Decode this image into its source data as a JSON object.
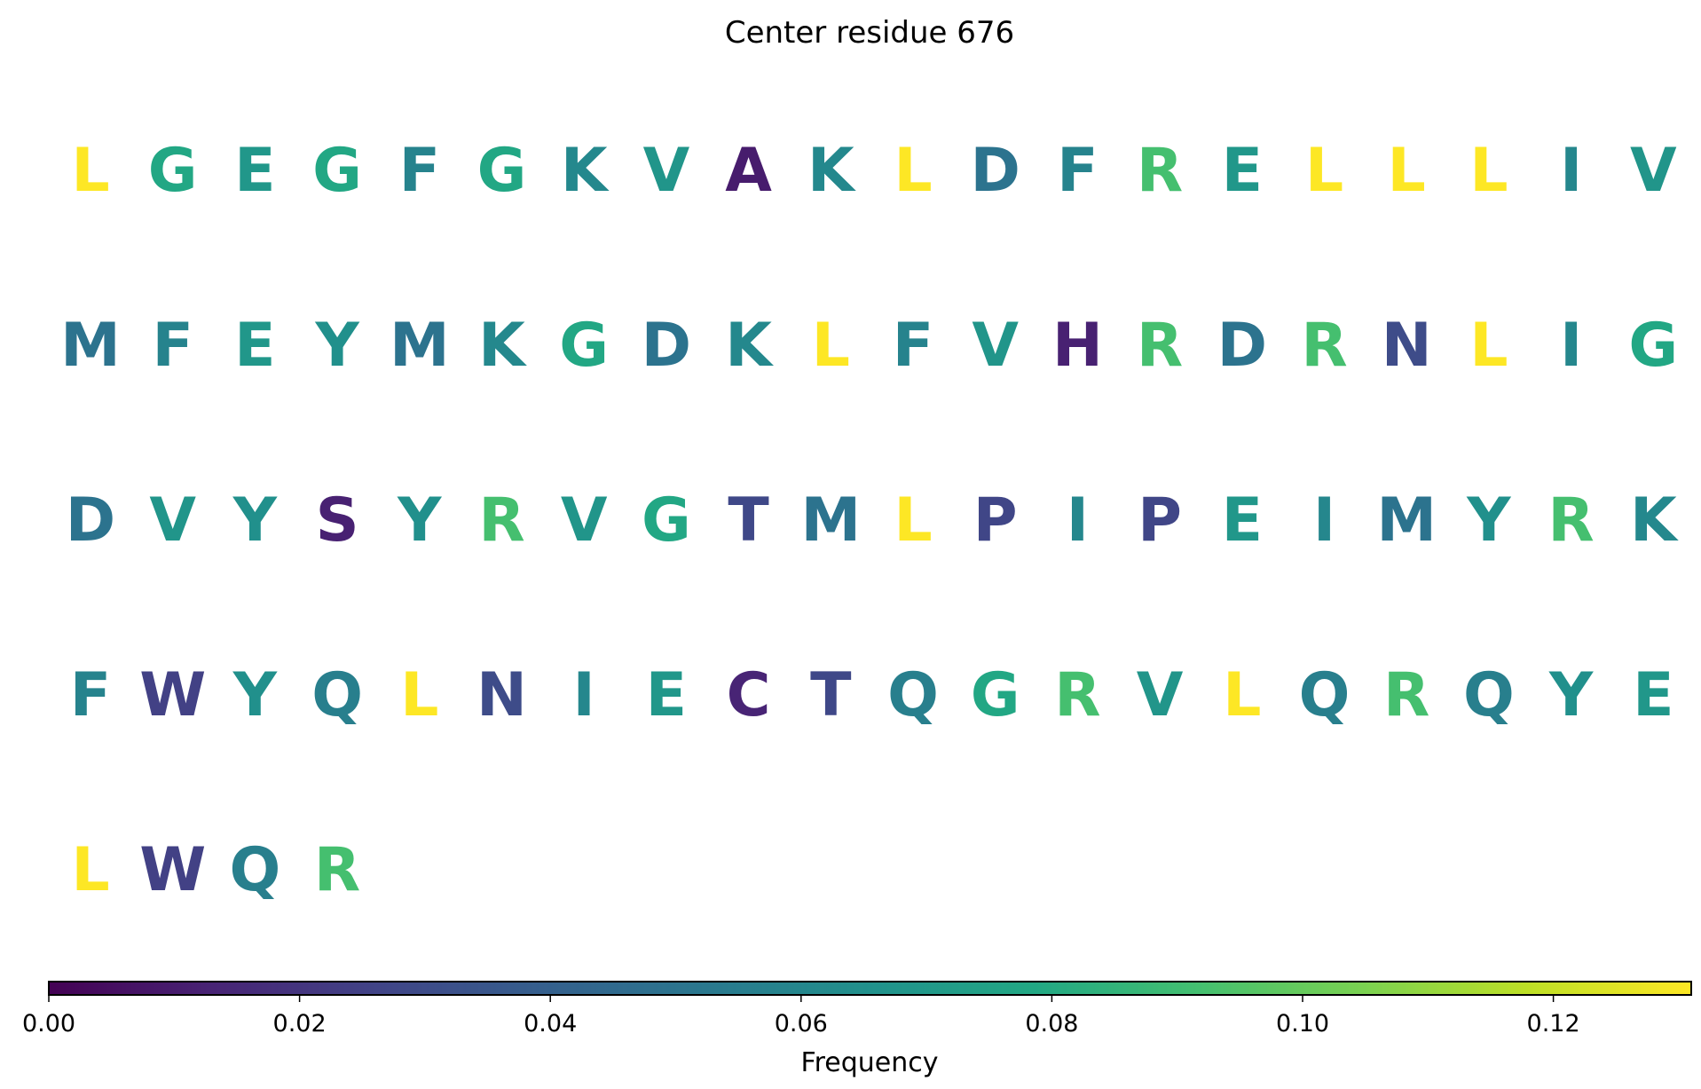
{
  "chart_data": {
    "type": "heatmap",
    "title": "Center residue 676",
    "colorbar": {
      "label": "Frequency",
      "range": [
        0,
        0.131
      ],
      "ticks": [
        0.0,
        0.02,
        0.04,
        0.06,
        0.08,
        0.1,
        0.12
      ],
      "tick_labels": [
        "0.00",
        "0.02",
        "0.04",
        "0.06",
        "0.08",
        "0.10",
        "0.12"
      ],
      "colormap": "viridis",
      "placement": "bottom"
    },
    "columns_per_row": 20,
    "residues": [
      {
        "letter": "L",
        "frequency": 0.131
      },
      {
        "letter": "G",
        "frequency": 0.078
      },
      {
        "letter": "E",
        "frequency": 0.069
      },
      {
        "letter": "G",
        "frequency": 0.078
      },
      {
        "letter": "F",
        "frequency": 0.058
      },
      {
        "letter": "G",
        "frequency": 0.078
      },
      {
        "letter": "K",
        "frequency": 0.061
      },
      {
        "letter": "V",
        "frequency": 0.068
      },
      {
        "letter": "A",
        "frequency": 0.01
      },
      {
        "letter": "K",
        "frequency": 0.061
      },
      {
        "letter": "L",
        "frequency": 0.131
      },
      {
        "letter": "D",
        "frequency": 0.05
      },
      {
        "letter": "F",
        "frequency": 0.058
      },
      {
        "letter": "R",
        "frequency": 0.092
      },
      {
        "letter": "E",
        "frequency": 0.069
      },
      {
        "letter": "L",
        "frequency": 0.131
      },
      {
        "letter": "L",
        "frequency": 0.131
      },
      {
        "letter": "L",
        "frequency": 0.131
      },
      {
        "letter": "I",
        "frequency": 0.06
      },
      {
        "letter": "V",
        "frequency": 0.068
      },
      {
        "letter": "M",
        "frequency": 0.05
      },
      {
        "letter": "F",
        "frequency": 0.058
      },
      {
        "letter": "E",
        "frequency": 0.069
      },
      {
        "letter": "Y",
        "frequency": 0.065
      },
      {
        "letter": "M",
        "frequency": 0.05
      },
      {
        "letter": "K",
        "frequency": 0.061
      },
      {
        "letter": "G",
        "frequency": 0.078
      },
      {
        "letter": "D",
        "frequency": 0.05
      },
      {
        "letter": "K",
        "frequency": 0.061
      },
      {
        "letter": "L",
        "frequency": 0.131
      },
      {
        "letter": "F",
        "frequency": 0.058
      },
      {
        "letter": "V",
        "frequency": 0.068
      },
      {
        "letter": "H",
        "frequency": 0.012
      },
      {
        "letter": "R",
        "frequency": 0.092
      },
      {
        "letter": "D",
        "frequency": 0.05
      },
      {
        "letter": "R",
        "frequency": 0.092
      },
      {
        "letter": "N",
        "frequency": 0.03
      },
      {
        "letter": "L",
        "frequency": 0.131
      },
      {
        "letter": "I",
        "frequency": 0.06
      },
      {
        "letter": "G",
        "frequency": 0.078
      },
      {
        "letter": "D",
        "frequency": 0.05
      },
      {
        "letter": "V",
        "frequency": 0.068
      },
      {
        "letter": "Y",
        "frequency": 0.065
      },
      {
        "letter": "S",
        "frequency": 0.012
      },
      {
        "letter": "Y",
        "frequency": 0.065
      },
      {
        "letter": "R",
        "frequency": 0.092
      },
      {
        "letter": "V",
        "frequency": 0.068
      },
      {
        "letter": "G",
        "frequency": 0.078
      },
      {
        "letter": "T",
        "frequency": 0.028
      },
      {
        "letter": "M",
        "frequency": 0.05
      },
      {
        "letter": "L",
        "frequency": 0.131
      },
      {
        "letter": "P",
        "frequency": 0.027
      },
      {
        "letter": "I",
        "frequency": 0.06
      },
      {
        "letter": "P",
        "frequency": 0.027
      },
      {
        "letter": "E",
        "frequency": 0.069
      },
      {
        "letter": "I",
        "frequency": 0.06
      },
      {
        "letter": "M",
        "frequency": 0.05
      },
      {
        "letter": "Y",
        "frequency": 0.065
      },
      {
        "letter": "R",
        "frequency": 0.092
      },
      {
        "letter": "K",
        "frequency": 0.061
      },
      {
        "letter": "F",
        "frequency": 0.058
      },
      {
        "letter": "W",
        "frequency": 0.025
      },
      {
        "letter": "Y",
        "frequency": 0.065
      },
      {
        "letter": "Q",
        "frequency": 0.056
      },
      {
        "letter": "L",
        "frequency": 0.131
      },
      {
        "letter": "N",
        "frequency": 0.03
      },
      {
        "letter": "I",
        "frequency": 0.06
      },
      {
        "letter": "E",
        "frequency": 0.069
      },
      {
        "letter": "C",
        "frequency": 0.013
      },
      {
        "letter": "T",
        "frequency": 0.028
      },
      {
        "letter": "Q",
        "frequency": 0.056
      },
      {
        "letter": "G",
        "frequency": 0.078
      },
      {
        "letter": "R",
        "frequency": 0.092
      },
      {
        "letter": "V",
        "frequency": 0.068
      },
      {
        "letter": "L",
        "frequency": 0.131
      },
      {
        "letter": "Q",
        "frequency": 0.056
      },
      {
        "letter": "R",
        "frequency": 0.092
      },
      {
        "letter": "Q",
        "frequency": 0.056
      },
      {
        "letter": "Y",
        "frequency": 0.065
      },
      {
        "letter": "E",
        "frequency": 0.069
      },
      {
        "letter": "L",
        "frequency": 0.131
      },
      {
        "letter": "W",
        "frequency": 0.025
      },
      {
        "letter": "Q",
        "frequency": 0.056
      },
      {
        "letter": "R",
        "frequency": 0.092
      }
    ]
  }
}
